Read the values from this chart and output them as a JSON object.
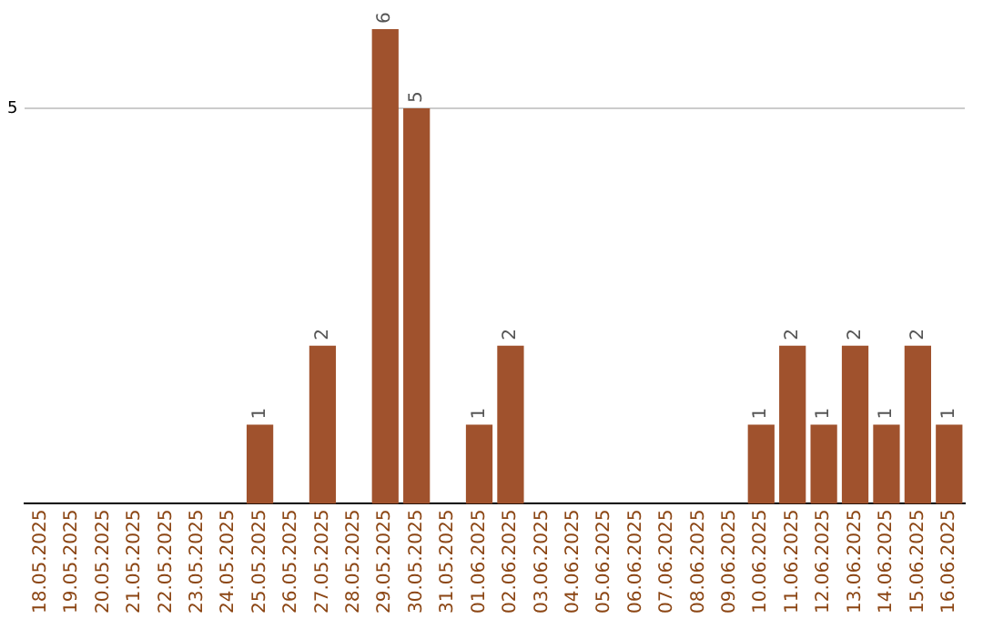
{
  "chart_data": {
    "type": "bar",
    "categories": [
      "18.05.2025",
      "19.05.2025",
      "20.05.2025",
      "21.05.2025",
      "22.05.2025",
      "23.05.2025",
      "24.05.2025",
      "25.05.2025",
      "26.05.2025",
      "27.05.2025",
      "28.05.2025",
      "29.05.2025",
      "30.05.2025",
      "31.05.2025",
      "01.06.2025",
      "02.06.2025",
      "03.06.2025",
      "04.06.2025",
      "05.06.2025",
      "06.06.2025",
      "07.06.2025",
      "08.06.2025",
      "09.06.2025",
      "10.06.2025",
      "11.06.2025",
      "12.06.2025",
      "13.06.2025",
      "14.06.2025",
      "15.06.2025",
      "16.06.2025"
    ],
    "values": [
      0,
      0,
      0,
      0,
      0,
      0,
      0,
      1,
      0,
      2,
      0,
      6,
      5,
      0,
      1,
      2,
      0,
      0,
      0,
      0,
      0,
      0,
      0,
      1,
      2,
      1,
      2,
      1,
      2,
      1
    ],
    "value_labels": [
      null,
      null,
      null,
      null,
      null,
      null,
      null,
      "1",
      null,
      "2",
      null,
      "6",
      "5",
      null,
      "1",
      "2",
      null,
      null,
      null,
      null,
      null,
      null,
      null,
      "1",
      "2",
      "1",
      "2",
      "1",
      "2",
      "1"
    ],
    "color": "#a0522d",
    "ylim": [
      0,
      6
    ],
    "yticks": [
      5
    ],
    "grid": "y",
    "legend": false
  }
}
